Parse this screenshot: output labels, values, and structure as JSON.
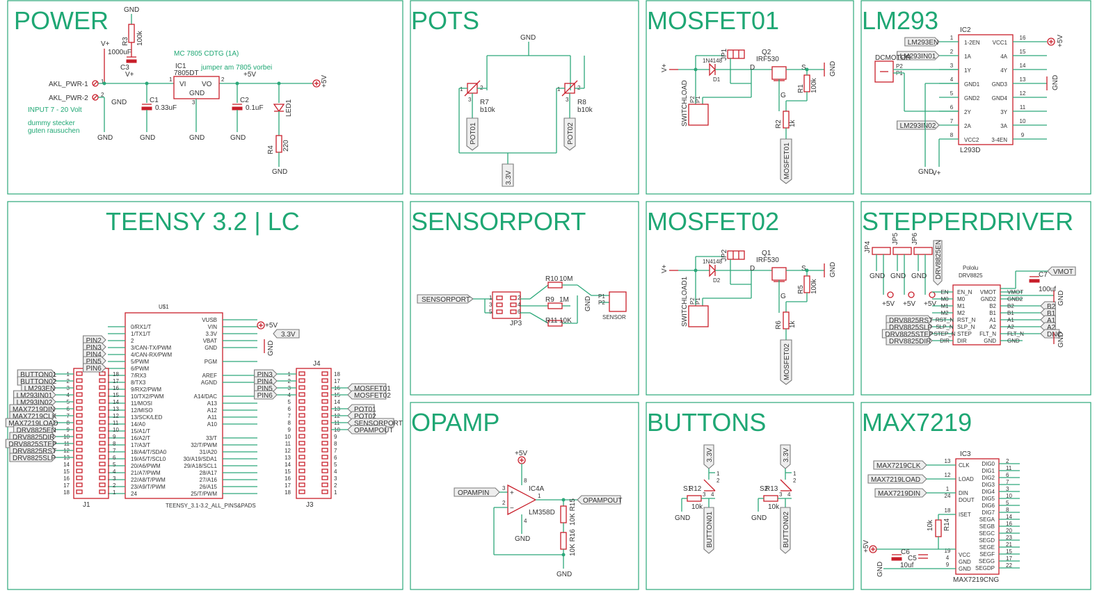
{
  "panels": {
    "power": "POWER",
    "pots": "POTS",
    "mosfet01": "MOSFET01",
    "lm293": "LM293",
    "teensy": "TEENSY 3.2 | LC",
    "sensorport": "SENSORPORT",
    "mosfet02": "MOSFET02",
    "stepperdriver": "STEPPERDRIVER",
    "opamp": "OPAMP",
    "buttons": "BUTTONS",
    "max7219": "MAX7219"
  },
  "net": {
    "gnd": "GND",
    "vplus": "V+",
    "p5v": "+5V",
    "p33v": "3.3V"
  },
  "power": {
    "akl1": "AKL_PWR-1",
    "akl2": "AKL_PWR-2",
    "pin1": "1",
    "pin2": "2",
    "input": "INPUT 7 - 20 Volt",
    "note1": "dummy stecker",
    "note2": "guten rausuchen",
    "r3": "R3",
    "r3v": "100k",
    "c3": "C3",
    "c3v": "1000uF",
    "reg": "MC 7805 CDTG (1A)",
    "jumper": "jumper am 7805 vorbei",
    "ic1": "IC1",
    "ic1v": "7805DT",
    "vi": "VI",
    "vo": "VO",
    "gndpin": "GND",
    "p1": "1",
    "p2": "2",
    "p3": "3",
    "c1": "C1",
    "c1v": "0.33uF",
    "c2": "C2",
    "c2v": "0.1uF",
    "led1": "LED1",
    "r4": "R4",
    "r4v": "220"
  },
  "pots": {
    "r7": "R7",
    "r7v": "b10k",
    "r8": "R8",
    "r8v": "b10k",
    "pot01": "POT01",
    "pot02": "POT02",
    "n1": "1",
    "n2": "2",
    "n3": "3"
  },
  "mosfet": {
    "jp1": "JP1",
    "jp2": "JP2",
    "q2": "Q2",
    "q1": "Q1",
    "irf": "IRF530",
    "diode": "1N4148",
    "d1": "D1",
    "d2": "D2",
    "d": "D",
    "g": "G",
    "s": "S",
    "r1": "R1",
    "r5": "R5",
    "r100k": "100k",
    "r2": "R2",
    "r6": "R6",
    "r1k": "1k",
    "switch1": "SWITCHLOAD",
    "switch2": "SWITCHLOAD1",
    "p1": "P1",
    "p2": "P2",
    "mos1": "MOSFET01",
    "mos2": "MOSFET02"
  },
  "lm293": {
    "ic2": "IC2",
    "part": "L293D",
    "dcmotor": "DCMOTOR",
    "p1": "P1",
    "p2": "P2",
    "left_labels": [
      "LM293EN",
      "LM293IN01",
      "",
      "",
      "",
      "",
      "LM293IN02",
      ""
    ],
    "left_pins": [
      "1",
      "2",
      "3",
      "4",
      "5",
      "6",
      "7",
      "8"
    ],
    "left_names": [
      "1-2EN",
      "1A",
      "1Y",
      "GND1",
      "GND2",
      "2Y",
      "2A",
      "VCC2"
    ],
    "right_pins": [
      "16",
      "15",
      "14",
      "13",
      "12",
      "11",
      "10",
      "9"
    ],
    "right_names": [
      "VCC1",
      "4A",
      "4Y",
      "GND3",
      "GND4",
      "3Y",
      "3A",
      "3-4EN"
    ]
  },
  "teensy": {
    "u": "U$1",
    "part": "TEENSY_3.1-3.2_ALL_PINS&PADS",
    "left": [
      "0/RX1/T",
      "1/TX1/T",
      "2",
      "3/CAN-TX/PWM",
      "4/CAN-RX/PWM",
      "5/PWM",
      "6/PWM",
      "7/RX3",
      "8/TX3",
      "9/RX2/PWM",
      "10/TX2/PWM",
      "11/MOSI",
      "12/MISO",
      "13/SCK/LED",
      "14/A0",
      "15/A1/T",
      "16/A2/T",
      "17/A3/T",
      "18/A4/T/SDA0",
      "19/A5/T/SCL0",
      "20/A6/PWM",
      "21/A7/PWM",
      "22/A8/T/PWM",
      "23/A9/T/PWM",
      "24"
    ],
    "right": [
      "VUSB",
      "VIN",
      "3.3V",
      "VBAT",
      "GND",
      "",
      "PGM",
      "",
      "AREF",
      "AGND",
      "",
      "A14/DAC",
      "A13",
      "A12",
      "A11",
      "A10",
      "",
      "33/T",
      "32/T/PWM",
      "31/A20",
      "30/A19/SDA1",
      "29/A18/SCL1",
      "28/A17",
      "27/A16",
      "26/A15",
      "25/T/PWM"
    ],
    "j1": "J1",
    "j3": "J3",
    "j4": "J4",
    "j1_labels": [
      "BUTTON01",
      "BUTTON02",
      "LM293EN",
      "LM293IN01",
      "LM293IN02",
      "MAX7219DIN",
      "MAX7219CLK",
      "MAX7219LOAD",
      "DRV8825EN",
      "DRV8825DIR",
      "DRV8825STEP",
      "DRV8825RST",
      "DRV8825SLP"
    ],
    "pin_flags": [
      "PIN2",
      "PIN3",
      "PIN4",
      "PIN5",
      "PIN6"
    ],
    "j4_left_flags": [
      "PIN3",
      "PIN4",
      "PIN5",
      "PIN6"
    ],
    "j4_right_labels": [
      "MOSFET01",
      "MOSFET02",
      "POT01",
      "POT02",
      "SENSORPORT",
      "OPAMPOUT"
    ],
    "p33": "3.3V"
  },
  "sensorport": {
    "label": "SENSORPORT",
    "jp3": "JP3",
    "r10": "R10",
    "r10v": "10M",
    "r9": "R9",
    "r9v": "1M",
    "r11": "R11",
    "r11v": "10K",
    "sensor": "SENSOR",
    "p1": "P1",
    "p2": "P2",
    "n": [
      "1",
      "2",
      "3",
      "4",
      "5",
      "6"
    ]
  },
  "stepper": {
    "jp4": "JP4",
    "jp5": "JP5",
    "jp6": "JP6",
    "en": "DRV8825EN",
    "pololu": "Pololu",
    "drv": "DRV8825",
    "vmot": "VMOT",
    "c7": "C7",
    "c7v": "100uf",
    "left_in": [
      "EN_N",
      "M0",
      "M1",
      "M2",
      "RST_N",
      "SLP_N",
      "STEP",
      "DIR"
    ],
    "left_out": [
      "EN",
      "M0",
      "M1",
      "M2",
      "RST_N",
      "SLP_N",
      "STEP_N",
      "DIR"
    ],
    "right_in": [
      "VMOT",
      "GND2",
      "B2",
      "B1",
      "A1",
      "A2",
      "FLT_N",
      "GND"
    ],
    "right_out": [
      "VMOT",
      "GND2",
      "B2",
      "B1",
      "A1",
      "A2",
      "FLT_N",
      "GND"
    ],
    "flags_left": [
      "DRV8825RST",
      "DRV8825SLP",
      "DRV8825STEP",
      "DRV8825DIR"
    ],
    "flags_right": [
      "B2",
      "B1",
      "A1",
      "A2",
      "DNC"
    ]
  },
  "opamp": {
    "in": "OPAMPIN",
    "out": "OPAMPOUT",
    "ic": "IC4A",
    "part": "LM358D",
    "r15": "10K R15",
    "r16": "10K R16",
    "p1": "1",
    "p2": "2",
    "p3": "3",
    "p4": "4",
    "p8": "8"
  },
  "buttons": {
    "s1": "S1",
    "s2": "S2",
    "r12": "R12",
    "r13": "R13",
    "r10k": "10k",
    "b1": "BUTTON01",
    "b2": "BUTTON02",
    "n1": "1",
    "n2": "2",
    "n3": "3",
    "n4": "4"
  },
  "max": {
    "ic3": "IC3",
    "part": "MAX7219CNG",
    "clk": "MAX7219CLK",
    "load": "MAX7219LOAD",
    "din": "MAX7219DIN",
    "r14": "R14",
    "r14v": "10k",
    "c6": "C6",
    "c6v": "10uf",
    "c5": "C5",
    "left": [
      [
        "13",
        "CLK"
      ],
      [
        "12",
        "LOAD"
      ],
      [
        "1",
        "DIN"
      ],
      [
        "24",
        "DOUT"
      ],
      [
        "18",
        "ISET"
      ],
      [
        "19",
        "VCC"
      ],
      [
        "4",
        "GND"
      ],
      [
        "9",
        "GND"
      ]
    ],
    "right": [
      [
        "2",
        "DIG0"
      ],
      [
        "11",
        "DIG1"
      ],
      [
        "6",
        "DIG2"
      ],
      [
        "7",
        "DIG3"
      ],
      [
        "3",
        "DIG4"
      ],
      [
        "10",
        "DIG5"
      ],
      [
        "5",
        "DIG6"
      ],
      [
        "8",
        "DIG7"
      ],
      [
        "14",
        "SEGA"
      ],
      [
        "16",
        "SEGB"
      ],
      [
        "20",
        "SEGC"
      ],
      [
        "23",
        "SEGD"
      ],
      [
        "21",
        "SEGE"
      ],
      [
        "15",
        "SEGF"
      ],
      [
        "17",
        "SEGG"
      ],
      [
        "22",
        "SEGDP"
      ]
    ]
  }
}
